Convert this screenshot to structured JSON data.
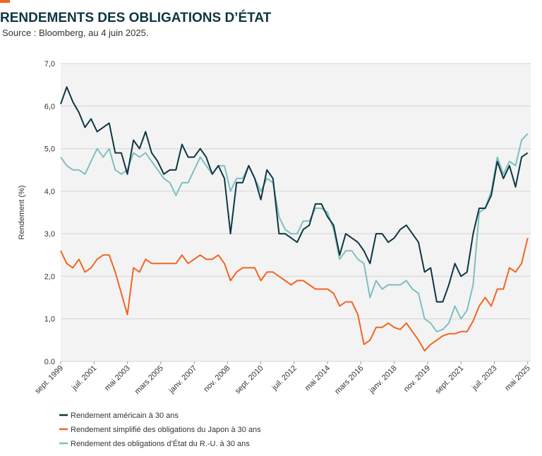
{
  "chart_data": {
    "type": "line",
    "title": "RENDEMENTS DES OBLIGATIONS D’ÉTAT",
    "subtitle": "Source : Bloomberg, au 4 juin 2025.",
    "y_label": "Rendement (%)",
    "x": [
      "1999-09",
      "2000-01",
      "2000-05",
      "2000-09",
      "2001-01",
      "2001-05",
      "2001-09",
      "2002-01",
      "2002-05",
      "2002-09",
      "2003-01",
      "2003-05",
      "2003-09",
      "2004-01",
      "2004-05",
      "2004-09",
      "2005-01",
      "2005-05",
      "2005-09",
      "2006-01",
      "2006-05",
      "2006-09",
      "2007-01",
      "2007-05",
      "2007-09",
      "2008-01",
      "2008-05",
      "2008-09",
      "2009-01",
      "2009-05",
      "2009-09",
      "2010-01",
      "2010-05",
      "2010-09",
      "2011-01",
      "2011-05",
      "2011-09",
      "2012-01",
      "2012-05",
      "2012-09",
      "2013-01",
      "2013-05",
      "2013-09",
      "2014-01",
      "2014-05",
      "2014-09",
      "2015-01",
      "2015-05",
      "2015-09",
      "2016-01",
      "2016-05",
      "2016-09",
      "2017-01",
      "2017-05",
      "2017-09",
      "2018-01",
      "2018-05",
      "2018-09",
      "2019-01",
      "2019-05",
      "2019-09",
      "2020-01",
      "2020-05",
      "2020-09",
      "2021-01",
      "2021-05",
      "2021-09",
      "2022-01",
      "2022-05",
      "2022-09",
      "2023-01",
      "2023-05",
      "2023-09",
      "2024-01",
      "2024-05",
      "2024-09",
      "2025-01",
      "2025-05"
    ],
    "series": [
      {
        "name": "Rendement américain à 30 ans",
        "color": "#0d3641",
        "values": [
          6.05,
          6.45,
          6.1,
          5.85,
          5.5,
          5.7,
          5.4,
          5.5,
          5.6,
          4.9,
          4.9,
          4.4,
          5.2,
          5.0,
          5.4,
          4.9,
          4.7,
          4.4,
          4.5,
          4.5,
          5.1,
          4.8,
          4.8,
          5.0,
          4.8,
          4.4,
          4.6,
          4.3,
          3.0,
          4.2,
          4.2,
          4.6,
          4.3,
          3.8,
          4.5,
          4.3,
          3.0,
          3.0,
          2.9,
          2.8,
          3.1,
          3.2,
          3.7,
          3.7,
          3.4,
          3.2,
          2.5,
          3.0,
          2.9,
          2.8,
          2.6,
          2.3,
          3.0,
          3.0,
          2.8,
          2.9,
          3.1,
          3.2,
          3.0,
          2.8,
          2.1,
          2.2,
          1.4,
          1.4,
          1.8,
          2.3,
          2.0,
          2.1,
          3.0,
          3.6,
          3.6,
          3.9,
          4.7,
          4.3,
          4.6,
          4.1,
          4.8,
          4.9
        ]
      },
      {
        "name": "Rendement simplifié des obligations du Japon à 30 ans",
        "color": "#f26522",
        "values": [
          2.6,
          2.3,
          2.2,
          2.4,
          2.1,
          2.2,
          2.4,
          2.5,
          2.5,
          2.1,
          1.6,
          1.1,
          2.2,
          2.1,
          2.4,
          2.3,
          2.3,
          2.3,
          2.3,
          2.3,
          2.5,
          2.3,
          2.4,
          2.5,
          2.4,
          2.4,
          2.5,
          2.3,
          1.9,
          2.1,
          2.2,
          2.2,
          2.2,
          1.9,
          2.1,
          2.1,
          2.0,
          1.9,
          1.8,
          1.9,
          1.9,
          1.8,
          1.7,
          1.7,
          1.7,
          1.6,
          1.3,
          1.4,
          1.4,
          1.1,
          0.4,
          0.5,
          0.8,
          0.8,
          0.9,
          0.8,
          0.75,
          0.9,
          0.7,
          0.5,
          0.25,
          0.4,
          0.5,
          0.6,
          0.65,
          0.65,
          0.7,
          0.7,
          0.95,
          1.3,
          1.5,
          1.3,
          1.7,
          1.7,
          2.2,
          2.1,
          2.3,
          2.9
        ]
      },
      {
        "name": "Rendement des obligations d’État du R.-U. à 30 ans",
        "color": "#7fbfbf",
        "values": [
          4.8,
          4.6,
          4.5,
          4.5,
          4.4,
          4.7,
          5.0,
          4.8,
          5.0,
          4.5,
          4.4,
          4.5,
          4.9,
          4.8,
          4.9,
          4.7,
          4.5,
          4.3,
          4.2,
          3.9,
          4.2,
          4.2,
          4.5,
          4.8,
          4.6,
          4.4,
          4.6,
          4.6,
          4.0,
          4.3,
          4.3,
          4.6,
          4.3,
          4.0,
          4.3,
          4.2,
          3.4,
          3.1,
          3.0,
          3.0,
          3.3,
          3.3,
          3.6,
          3.6,
          3.5,
          3.1,
          2.4,
          2.6,
          2.6,
          2.4,
          2.3,
          1.5,
          1.9,
          1.7,
          1.8,
          1.8,
          1.8,
          1.9,
          1.7,
          1.6,
          1.0,
          0.9,
          0.7,
          0.75,
          0.9,
          1.3,
          1.0,
          1.2,
          1.8,
          3.5,
          3.6,
          4.0,
          4.8,
          4.4,
          4.7,
          4.6,
          5.2,
          5.35
        ]
      }
    ],
    "xlim": [
      "1999-09",
      "2025-07"
    ],
    "xticks": [
      {
        "value": "1999-09",
        "label": "sept. 1999"
      },
      {
        "value": "2001-07",
        "label": "juil. 2001"
      },
      {
        "value": "2003-05",
        "label": "mai 2003"
      },
      {
        "value": "2005-03",
        "label": "mars 2005"
      },
      {
        "value": "2007-01",
        "label": "janv. 2007"
      },
      {
        "value": "2008-11",
        "label": "nov. 2008"
      },
      {
        "value": "2010-09",
        "label": "sept. 2010"
      },
      {
        "value": "2012-07",
        "label": "juil. 2012"
      },
      {
        "value": "2014-05",
        "label": "mai 2014"
      },
      {
        "value": "2016-03",
        "label": "mars 2016"
      },
      {
        "value": "2018-01",
        "label": "janv. 2018"
      },
      {
        "value": "2019-11",
        "label": "nov. 2019"
      },
      {
        "value": "2021-09",
        "label": "sept. 2021"
      },
      {
        "value": "2023-07",
        "label": "juil. 2023"
      },
      {
        "value": "2025-05",
        "label": "mai 2025"
      }
    ],
    "ylim": [
      0,
      7
    ],
    "yticks": [
      {
        "value": 0,
        "label": "0.0"
      },
      {
        "value": 1,
        "label": "1,0"
      },
      {
        "value": 2,
        "label": "2,0"
      },
      {
        "value": 3,
        "label": "3,0"
      },
      {
        "value": 4,
        "label": "4,0"
      },
      {
        "value": 5,
        "label": "5,0"
      },
      {
        "value": 6,
        "label": "6,0"
      },
      {
        "value": 7,
        "label": "7,0"
      }
    ],
    "grid": true,
    "legend": "bottom"
  }
}
